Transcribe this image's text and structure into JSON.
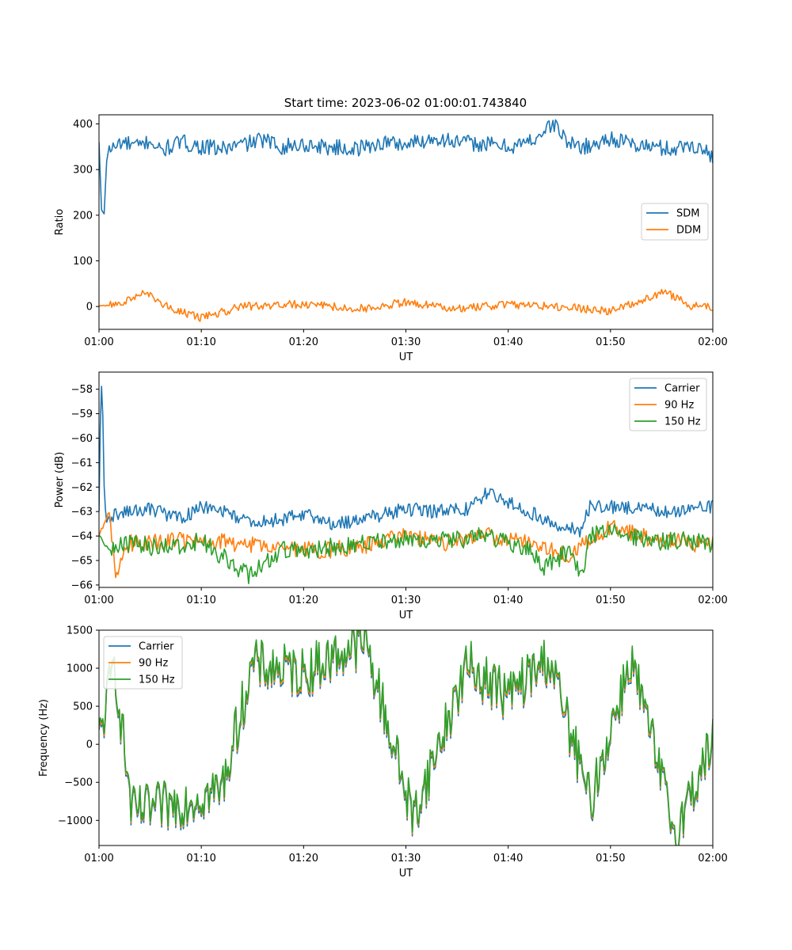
{
  "figure_title": "Start time: 2023-06-02 01:00:01.743840",
  "colors": {
    "c0": "#1f77b4",
    "c1": "#ff7f0e",
    "c2": "#2ca02c"
  },
  "chart_data": [
    {
      "type": "line",
      "title": "Start time: 2023-06-02 01:00:01.743840",
      "xlabel": "UT",
      "ylabel": "Ratio",
      "xlim": [
        "01:00",
        "02:00"
      ],
      "x_ticks": [
        "01:00",
        "01:10",
        "01:20",
        "01:30",
        "01:40",
        "01:50",
        "02:00"
      ],
      "ylim": [
        -50,
        420
      ],
      "y_ticks": [
        0,
        100,
        200,
        300,
        400
      ],
      "legend_placement": "center-right",
      "series": [
        {
          "name": "SDM",
          "color": "#1f77b4",
          "values_hint": "starts near 360, dips to about 205 at 01:00:30, then fluctuates around 355 (range ~320–400)",
          "x_minutes": [
            0,
            0.25,
            0.5,
            0.75,
            1.0,
            1.5,
            2,
            3,
            4,
            5,
            6,
            8,
            10,
            12,
            14,
            16,
            18,
            20,
            22,
            25,
            28,
            30,
            33,
            35,
            38,
            40,
            42,
            44.5,
            46,
            48,
            50,
            52,
            54,
            56,
            58,
            60
          ],
          "y": [
            360,
            210,
            205,
            320,
            350,
            345,
            360,
            355,
            350,
            365,
            340,
            360,
            350,
            345,
            355,
            365,
            350,
            355,
            350,
            345,
            360,
            355,
            370,
            360,
            355,
            350,
            360,
            400,
            355,
            350,
            370,
            355,
            350,
            345,
            355,
            330
          ]
        },
        {
          "name": "DDM",
          "color": "#ff7f0e",
          "values_hint": "fluctuates around 0 (range ~-25 to +33)",
          "x_minutes": [
            0,
            2,
            4.5,
            7,
            10,
            14,
            20,
            26,
            30,
            35,
            40,
            45,
            50,
            55.3,
            58,
            60
          ],
          "y": [
            0,
            5,
            30,
            -5,
            -25,
            0,
            5,
            -5,
            10,
            -5,
            5,
            0,
            -10,
            33,
            0,
            0
          ]
        }
      ]
    },
    {
      "type": "line",
      "xlabel": "UT",
      "ylabel": "Power (dB)",
      "xlim": [
        "01:00",
        "02:00"
      ],
      "x_ticks": [
        "01:00",
        "01:10",
        "01:20",
        "01:30",
        "01:40",
        "01:50",
        "02:00"
      ],
      "ylim": [
        -66.1,
        -57.3
      ],
      "y_ticks": [
        -58,
        -59,
        -60,
        -61,
        -62,
        -63,
        -64,
        -65,
        -66
      ],
      "legend_placement": "upper-right",
      "series": [
        {
          "name": "Carrier",
          "color": "#1f77b4",
          "x_minutes": [
            0,
            0.2,
            0.35,
            0.5,
            0.7,
            1,
            3,
            5,
            8,
            10,
            13,
            15,
            18,
            20,
            23,
            26,
            30,
            33,
            36,
            38,
            40,
            43,
            45,
            47,
            48,
            50,
            53,
            56,
            60
          ],
          "y": [
            -63.0,
            -57.5,
            -58.5,
            -62.0,
            -63.5,
            -63.2,
            -63.0,
            -62.9,
            -63.3,
            -62.8,
            -63.1,
            -63.5,
            -63.3,
            -63.1,
            -63.5,
            -63.3,
            -62.9,
            -63.0,
            -62.9,
            -62.2,
            -62.6,
            -63.2,
            -63.6,
            -63.8,
            -62.8,
            -62.8,
            -62.9,
            -63.0,
            -62.8
          ]
        },
        {
          "name": "90 Hz",
          "color": "#ff7f0e",
          "x_minutes": [
            0,
            1,
            1.6,
            3,
            6,
            10,
            14,
            18,
            22,
            26,
            30,
            34,
            38,
            42,
            46,
            50,
            54,
            58,
            60
          ],
          "y": [
            -64.0,
            -63.0,
            -65.6,
            -64.3,
            -64.2,
            -64.2,
            -64.3,
            -64.5,
            -64.6,
            -64.4,
            -64.0,
            -64.3,
            -64.0,
            -64.2,
            -64.8,
            -63.6,
            -64.1,
            -64.3,
            -64.3
          ]
        },
        {
          "name": "150 Hz",
          "color": "#2ca02c",
          "x_minutes": [
            0,
            1,
            3,
            6,
            10,
            14.5,
            18,
            22,
            26,
            30,
            34,
            38,
            42,
            43.5,
            46,
            47.4,
            48,
            50,
            54,
            58,
            60
          ],
          "y": [
            -64.0,
            -64.6,
            -64.3,
            -64.5,
            -64.2,
            -65.6,
            -64.6,
            -64.5,
            -64.3,
            -64.1,
            -64.2,
            -64.0,
            -64.5,
            -65.3,
            -64.6,
            -65.7,
            -64.0,
            -63.8,
            -64.2,
            -64.2,
            -64.4
          ]
        }
      ]
    },
    {
      "type": "line",
      "xlabel": "UT",
      "ylabel": "Frequency (Hz)",
      "xlim": [
        "01:00",
        "02:00"
      ],
      "x_ticks": [
        "01:00",
        "01:10",
        "01:20",
        "01:30",
        "01:40",
        "01:50",
        "02:00"
      ],
      "ylim": [
        -1330,
        1500
      ],
      "y_ticks": [
        -1000,
        -500,
        0,
        500,
        1000,
        1500
      ],
      "legend_placement": "upper-left",
      "series": [
        {
          "name": "Carrier",
          "color": "#1f77b4",
          "values_hint": "noisy around 0, range ~-1200 to +1350, nearly identical to 150 Hz but offset ~-60 Hz",
          "x_minutes": [
            0,
            1.5,
            3.2,
            7,
            12,
            15,
            20,
            26,
            30.7,
            36,
            40,
            44,
            48,
            52,
            56.3,
            60
          ],
          "y": [
            0,
            1050,
            -930,
            -840,
            -620,
            1000,
            900,
            1330,
            -1000,
            1000,
            600,
            1100,
            -800,
            1100,
            -1200,
            0
          ]
        },
        {
          "name": "90 Hz",
          "color": "#ff7f0e",
          "values_hint": "noisy around 0, offset ~-30 Hz from 150 Hz",
          "x_minutes": [
            0,
            1.5,
            3.2,
            7,
            12,
            15,
            20,
            26,
            30.7,
            36,
            40,
            44,
            48,
            52,
            56.3,
            60
          ],
          "y": [
            30,
            1080,
            -900,
            -810,
            -590,
            1030,
            930,
            1360,
            -970,
            1030,
            630,
            1130,
            -770,
            1130,
            -1170,
            30
          ]
        },
        {
          "name": "150 Hz",
          "color": "#2ca02c",
          "values_hint": "noisy around 0, range ~-1150 to +1380",
          "x_minutes": [
            0,
            1.5,
            3.2,
            7,
            12,
            15,
            20,
            26,
            30.7,
            36,
            40,
            44,
            48,
            52,
            56.3,
            60
          ],
          "y": [
            60,
            1100,
            -880,
            -790,
            -570,
            1060,
            960,
            1380,
            -950,
            1060,
            660,
            1160,
            -750,
            1160,
            -1150,
            60
          ]
        }
      ]
    }
  ]
}
